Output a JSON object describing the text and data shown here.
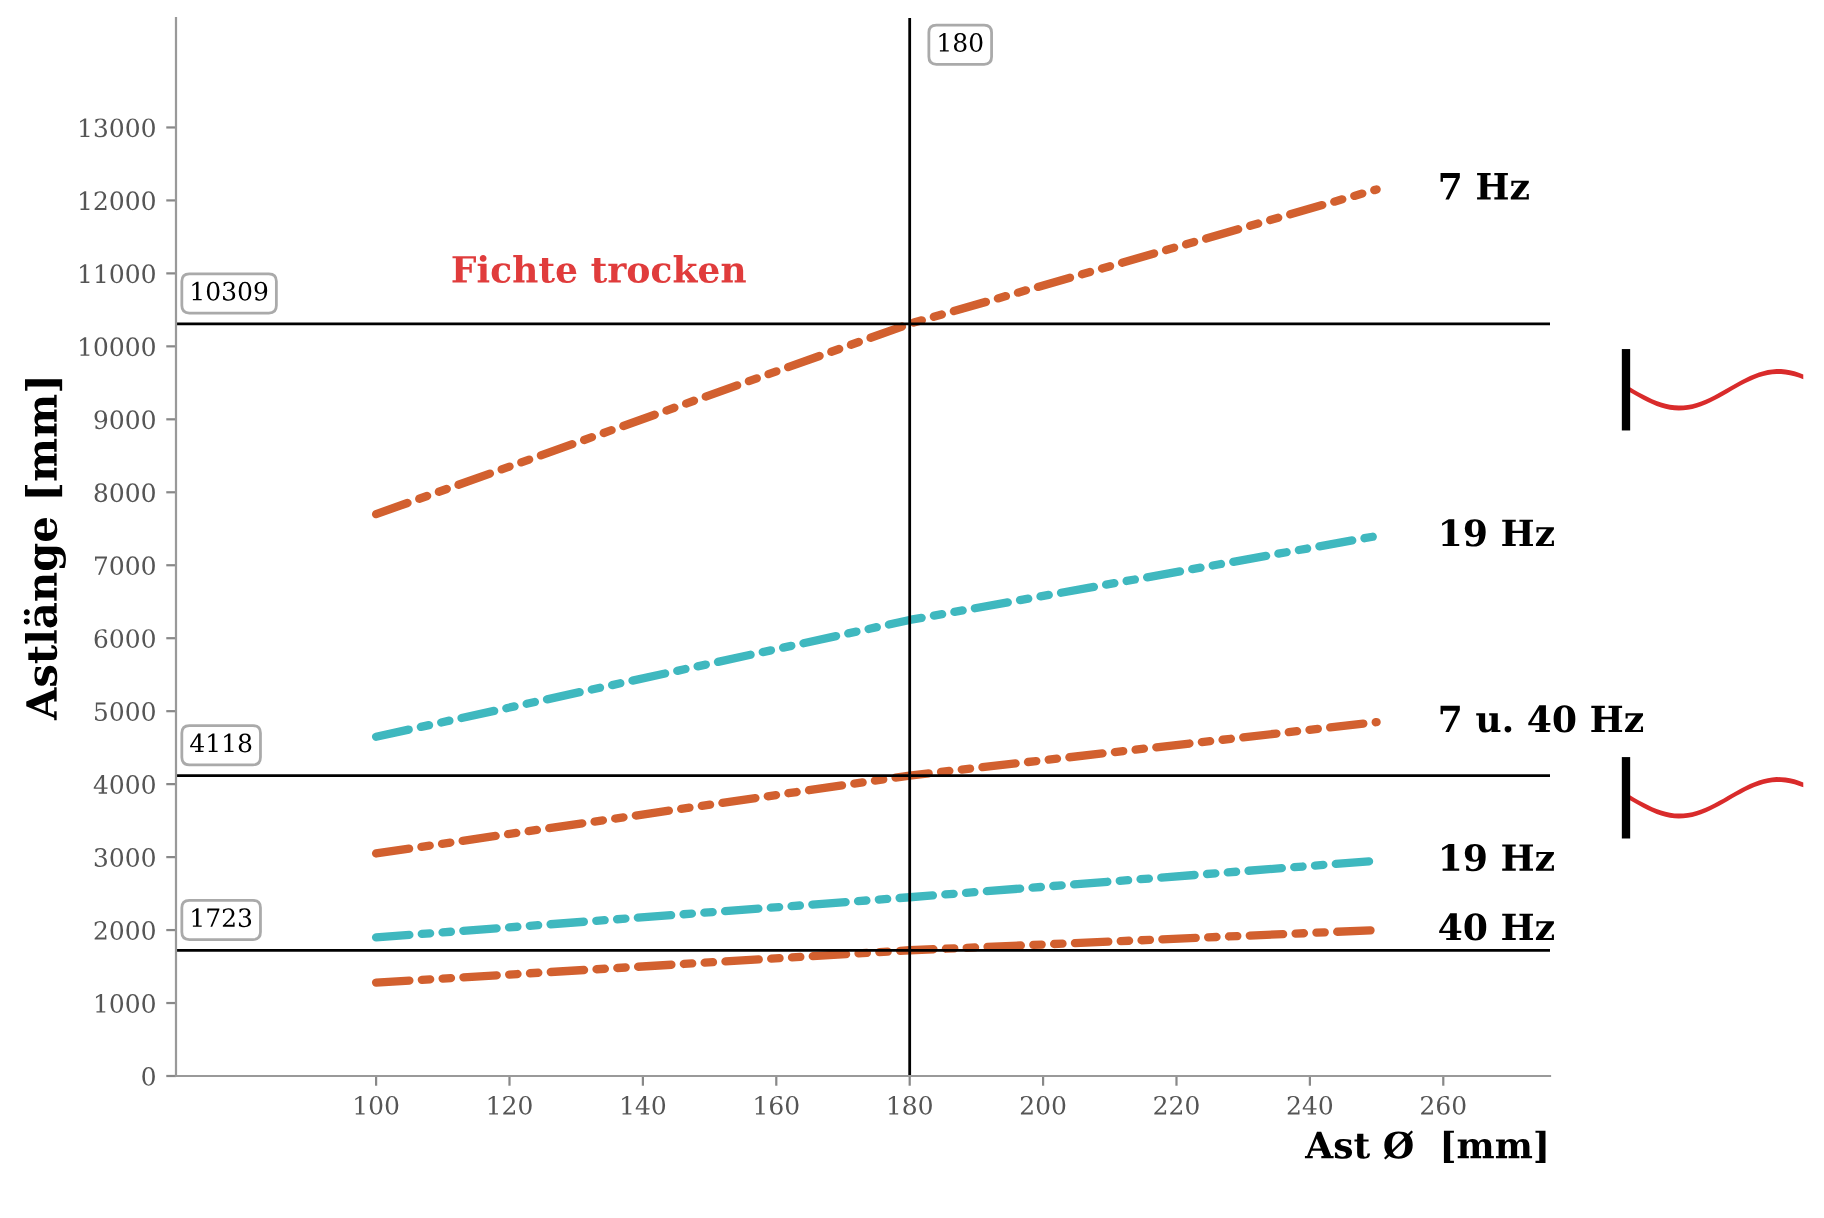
{
  "chart_data": {
    "type": "line",
    "xlabel": "Ast Ø  [mm]",
    "ylabel": "Astlänge [mm]",
    "x": [
      100,
      180,
      250
    ],
    "series": [
      {
        "name": "7 Hz",
        "color": "#d2602f",
        "values": [
          7700,
          10309,
          12150
        ]
      },
      {
        "name": "19 Hz",
        "color": "#3fb8bf",
        "values": [
          4650,
          6250,
          7400
        ]
      },
      {
        "name": "7 u. 40 Hz",
        "color": "#d2602f",
        "values": [
          3050,
          4118,
          4850
        ]
      },
      {
        "name": "19 Hz",
        "color": "#3fb8bf",
        "values": [
          1900,
          2450,
          2950
        ]
      },
      {
        "name": "40 Hz",
        "color": "#d2602f",
        "values": [
          1280,
          1723,
          2000
        ]
      }
    ],
    "xlim": [
      70,
      276
    ],
    "ylim": [
      0,
      14500
    ],
    "xticks": [
      100,
      120,
      140,
      160,
      180,
      200,
      220,
      240,
      260
    ],
    "yticks": [
      0,
      1000,
      2000,
      3000,
      4000,
      5000,
      6000,
      7000,
      8000,
      9000,
      10000,
      11000,
      12000,
      13000
    ],
    "ref_lines": [
      {
        "axis": "y",
        "value": 10309,
        "label": "10309"
      },
      {
        "axis": "y",
        "value": 4118,
        "label": "4118"
      },
      {
        "axis": "y",
        "value": 1723,
        "label": "1723"
      },
      {
        "axis": "x",
        "value": 180,
        "label": "180"
      }
    ],
    "annotations": [
      "Fichte trocken"
    ],
    "line_style": "dashed",
    "marker": "none",
    "grid": false,
    "legend": false
  }
}
